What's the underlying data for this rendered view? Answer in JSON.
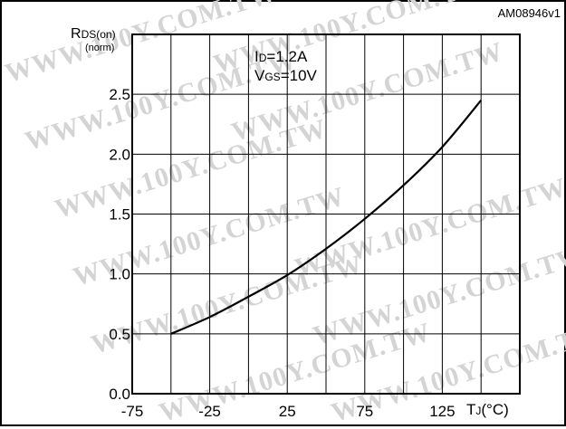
{
  "figure": {
    "code": "AM08946v1",
    "watermark": "WWW.100Y.COM.TW"
  },
  "chart_data": {
    "type": "line",
    "ylabel_main": "R",
    "ylabel_sub": "DS(on)",
    "ylabel_norm": "(norm)",
    "xlabel_main": "T",
    "xlabel_sub": "J",
    "xlabel_unit": "(°C)",
    "annotation": {
      "line1_main": "I",
      "line1_sub": "D",
      "line1_rest": "=1.2A",
      "line2_main": "V",
      "line2_sub": "GS",
      "line2_rest": "=10V"
    },
    "xlim": [
      -75,
      175
    ],
    "ylim": [
      0.0,
      3.0
    ],
    "x_ticks": [
      -75,
      -25,
      25,
      75,
      125
    ],
    "x_tick_labels": [
      "-75",
      "-25",
      "25",
      "75",
      "125"
    ],
    "y_ticks": [
      0.0,
      0.5,
      1.0,
      1.5,
      2.0,
      2.5
    ],
    "y_tick_labels": [
      "0.0",
      "0.5",
      "1.0",
      "1.5",
      "2.0",
      "2.5"
    ],
    "grid": true,
    "series": [
      {
        "x": [
          -50,
          -25,
          0,
          25,
          50,
          75,
          100,
          125,
          150
        ],
        "y": [
          0.5,
          0.64,
          0.81,
          0.99,
          1.21,
          1.46,
          1.74,
          2.06,
          2.45
        ]
      }
    ]
  }
}
